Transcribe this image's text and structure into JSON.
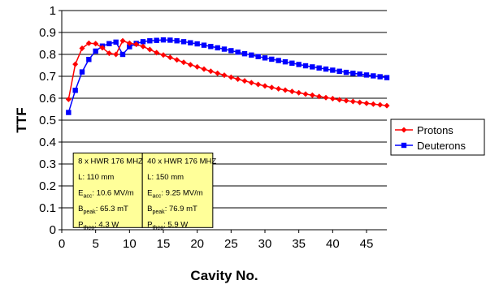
{
  "chart_data": {
    "type": "line",
    "title": "",
    "xlabel": "Cavity No.",
    "ylabel": "TTF",
    "xlim": [
      0,
      48
    ],
    "ylim": [
      0,
      1
    ],
    "x_ticks": [
      0,
      5,
      10,
      15,
      20,
      25,
      30,
      35,
      40,
      45
    ],
    "y_ticks": [
      0,
      0.1,
      0.2,
      0.3,
      0.4,
      0.5,
      0.6,
      0.7,
      0.8,
      0.9,
      1
    ],
    "grid": "horizontal",
    "legend_position": "right",
    "series": [
      {
        "name": "Protons",
        "color": "#ff0000",
        "marker": "diamond",
        "x": [
          1,
          2,
          3,
          4,
          5,
          6,
          7,
          8,
          9,
          10,
          11,
          12,
          13,
          14,
          15,
          16,
          17,
          18,
          19,
          20,
          21,
          22,
          23,
          24,
          25,
          26,
          27,
          28,
          29,
          30,
          31,
          32,
          33,
          34,
          35,
          36,
          37,
          38,
          39,
          40,
          41,
          42,
          43,
          44,
          45,
          46,
          47,
          48
        ],
        "values": [
          0.595,
          0.755,
          0.828,
          0.851,
          0.849,
          0.83,
          0.805,
          0.8,
          0.862,
          0.851,
          0.846,
          0.836,
          0.822,
          0.808,
          0.797,
          0.786,
          0.775,
          0.764,
          0.753,
          0.743,
          0.733,
          0.723,
          0.714,
          0.705,
          0.696,
          0.687,
          0.679,
          0.671,
          0.663,
          0.656,
          0.649,
          0.643,
          0.637,
          0.631,
          0.625,
          0.619,
          0.614,
          0.608,
          0.603,
          0.598,
          0.593,
          0.589,
          0.585,
          0.581,
          0.577,
          0.573,
          0.57,
          0.566
        ]
      },
      {
        "name": "Deuterons",
        "color": "#0000ff",
        "marker": "square",
        "x": [
          1,
          2,
          3,
          4,
          5,
          6,
          7,
          8,
          9,
          10,
          11,
          12,
          13,
          14,
          15,
          16,
          17,
          18,
          19,
          20,
          21,
          22,
          23,
          24,
          25,
          26,
          27,
          28,
          29,
          30,
          31,
          32,
          33,
          34,
          35,
          36,
          37,
          38,
          39,
          40,
          41,
          42,
          43,
          44,
          45,
          46,
          47,
          48
        ],
        "values": [
          0.535,
          0.636,
          0.72,
          0.777,
          0.815,
          0.838,
          0.849,
          0.856,
          0.8,
          0.835,
          0.85,
          0.858,
          0.862,
          0.864,
          0.866,
          0.865,
          0.862,
          0.858,
          0.853,
          0.848,
          0.842,
          0.836,
          0.83,
          0.824,
          0.817,
          0.81,
          0.803,
          0.797,
          0.79,
          0.784,
          0.778,
          0.772,
          0.766,
          0.76,
          0.754,
          0.748,
          0.743,
          0.738,
          0.733,
          0.728,
          0.723,
          0.718,
          0.714,
          0.71,
          0.706,
          0.702,
          0.698,
          0.694
        ]
      }
    ],
    "annotations": [
      {
        "lines": [
          {
            "main": "8 x HWR 176 MHZ"
          },
          {
            "main": "L: 110 mm"
          },
          {
            "main": "E",
            "sub": "acc",
            "rest": ": 10.6 MV/m"
          },
          {
            "main": "B",
            "sub": "peak",
            "rest": ": 65.3 mT"
          },
          {
            "main": "P",
            "sub": "theo",
            "rest": ": 4.3 W"
          }
        ]
      },
      {
        "lines": [
          {
            "main": "40 x HWR 176 MHZ"
          },
          {
            "main": "L: 150 mm"
          },
          {
            "main": "E",
            "sub": "acc",
            "rest": ": 9.25 MV/m"
          },
          {
            "main": "B",
            "sub": "peak",
            "rest": ": 76.9 mT"
          },
          {
            "main": "P",
            "sub": "theo",
            "rest": ": 5.9 W"
          }
        ]
      }
    ]
  }
}
